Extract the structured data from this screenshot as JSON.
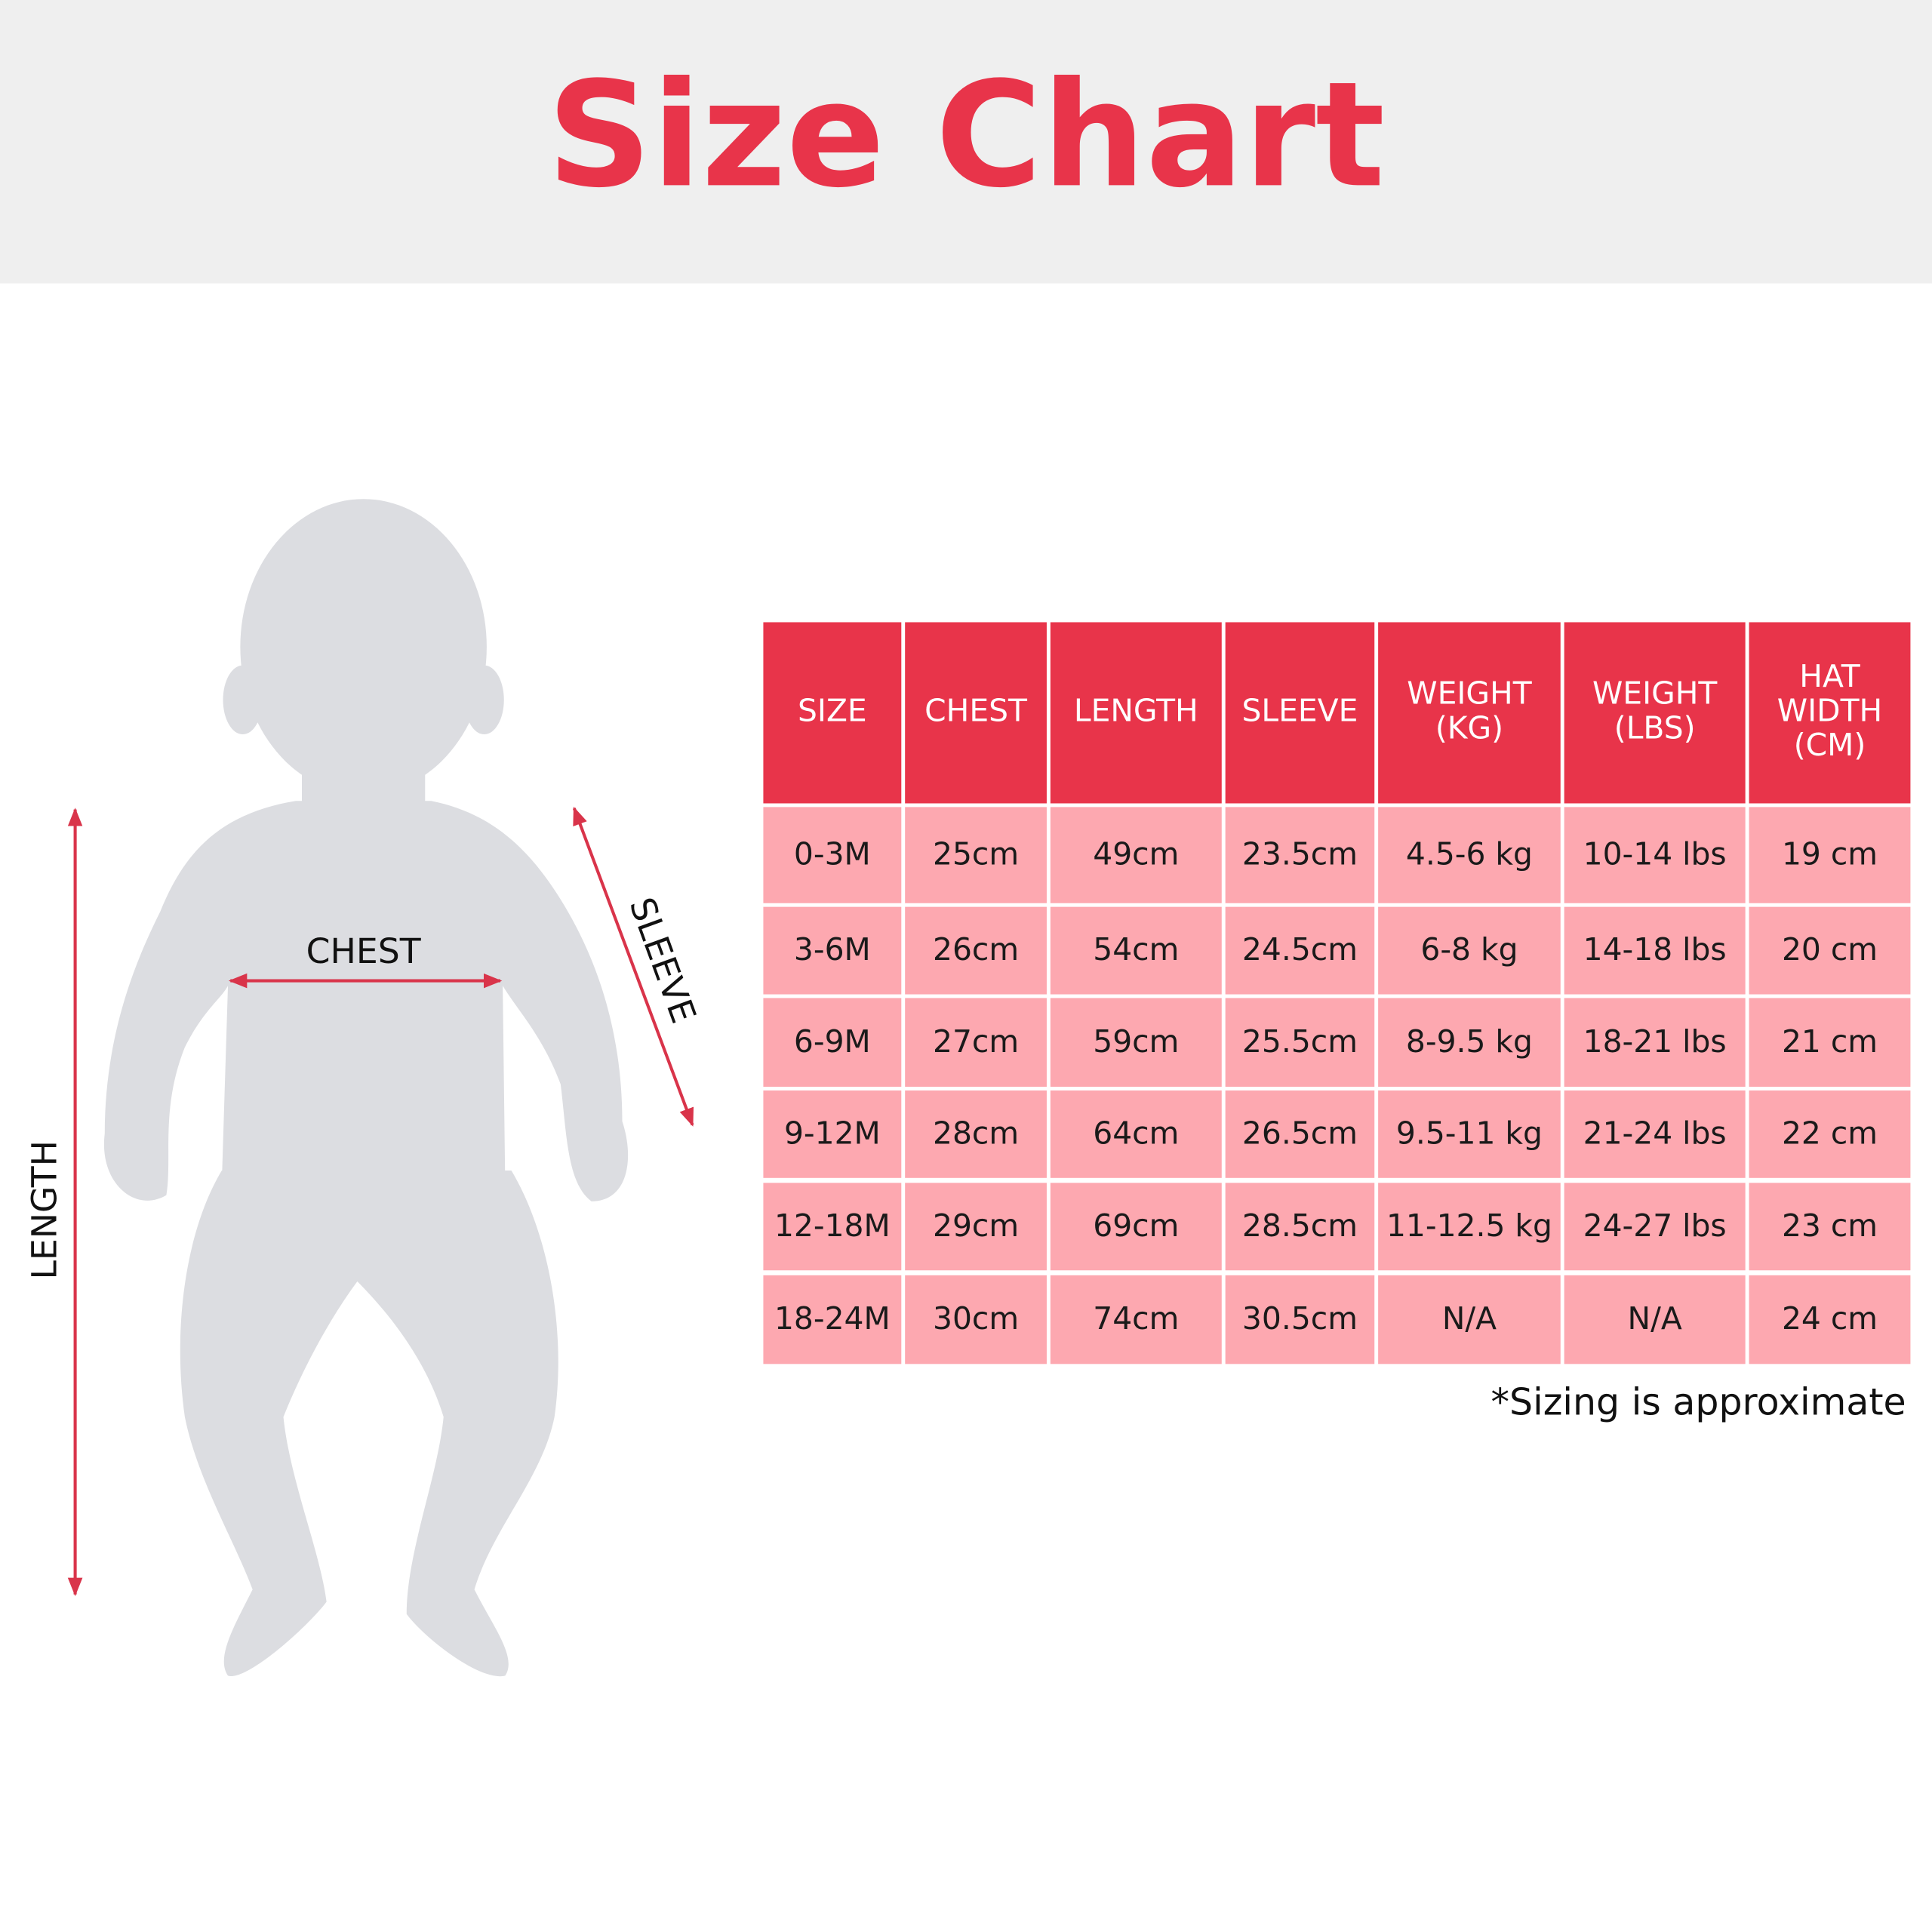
{
  "title": "Size Chart",
  "diagram": {
    "length": "LENGTH",
    "chest": "CHEST",
    "sleeve": "SLEEVE"
  },
  "table": {
    "header": [
      [
        "SIZE"
      ],
      [
        "CHEST"
      ],
      [
        "LENGTH"
      ],
      [
        "SLEEVE"
      ],
      [
        "WEIGHT",
        "(KG)"
      ],
      [
        "WEIGHT",
        "(LBS)"
      ],
      [
        "HAT",
        "WIDTH",
        "(CM)"
      ]
    ],
    "rows": [
      [
        "0-3M",
        "25cm",
        "49cm",
        "23.5cm",
        "4.5-6 kg",
        "10-14 lbs",
        "19 cm"
      ],
      [
        "3-6M",
        "26cm",
        "54cm",
        "24.5cm",
        "6-8 kg",
        "14-18 lbs",
        "20 cm"
      ],
      [
        "6-9M",
        "27cm",
        "59cm",
        "25.5cm",
        "8-9.5 kg",
        "18-21 lbs",
        "21 cm"
      ],
      [
        "9-12M",
        "28cm",
        "64cm",
        "26.5cm",
        "9.5-11 kg",
        "21-24 lbs",
        "22 cm"
      ],
      [
        "12-18M",
        "29cm",
        "69cm",
        "28.5cm",
        "11-12.5 kg",
        "24-27 lbs",
        "23 cm"
      ],
      [
        "18-24M",
        "30cm",
        "74cm",
        "30.5cm",
        "N/A",
        "N/A",
        "24 cm"
      ]
    ]
  },
  "footnote": "*Sizing is approximate"
}
